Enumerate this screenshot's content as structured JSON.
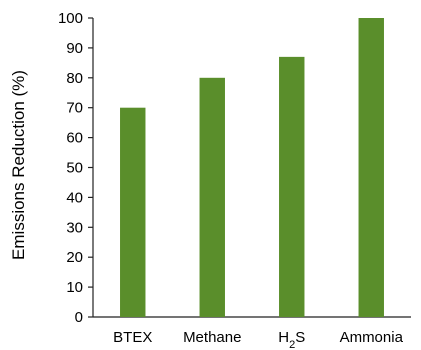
{
  "chart_data": {
    "type": "bar",
    "categories": [
      "BTEX",
      "Methane",
      "H2S",
      "Ammonia"
    ],
    "values": [
      70,
      80,
      87,
      100
    ],
    "title": "",
    "xlabel": "",
    "ylabel": "Emissions Reduction (%)",
    "ylim": [
      0,
      100
    ],
    "yticks": [
      0,
      10,
      20,
      30,
      40,
      50,
      60,
      70,
      80,
      90,
      100
    ],
    "grid": false,
    "legend": "none",
    "colors": {
      "bar": "#5a8e2b",
      "axis": "#222222",
      "text": "#000000"
    }
  }
}
